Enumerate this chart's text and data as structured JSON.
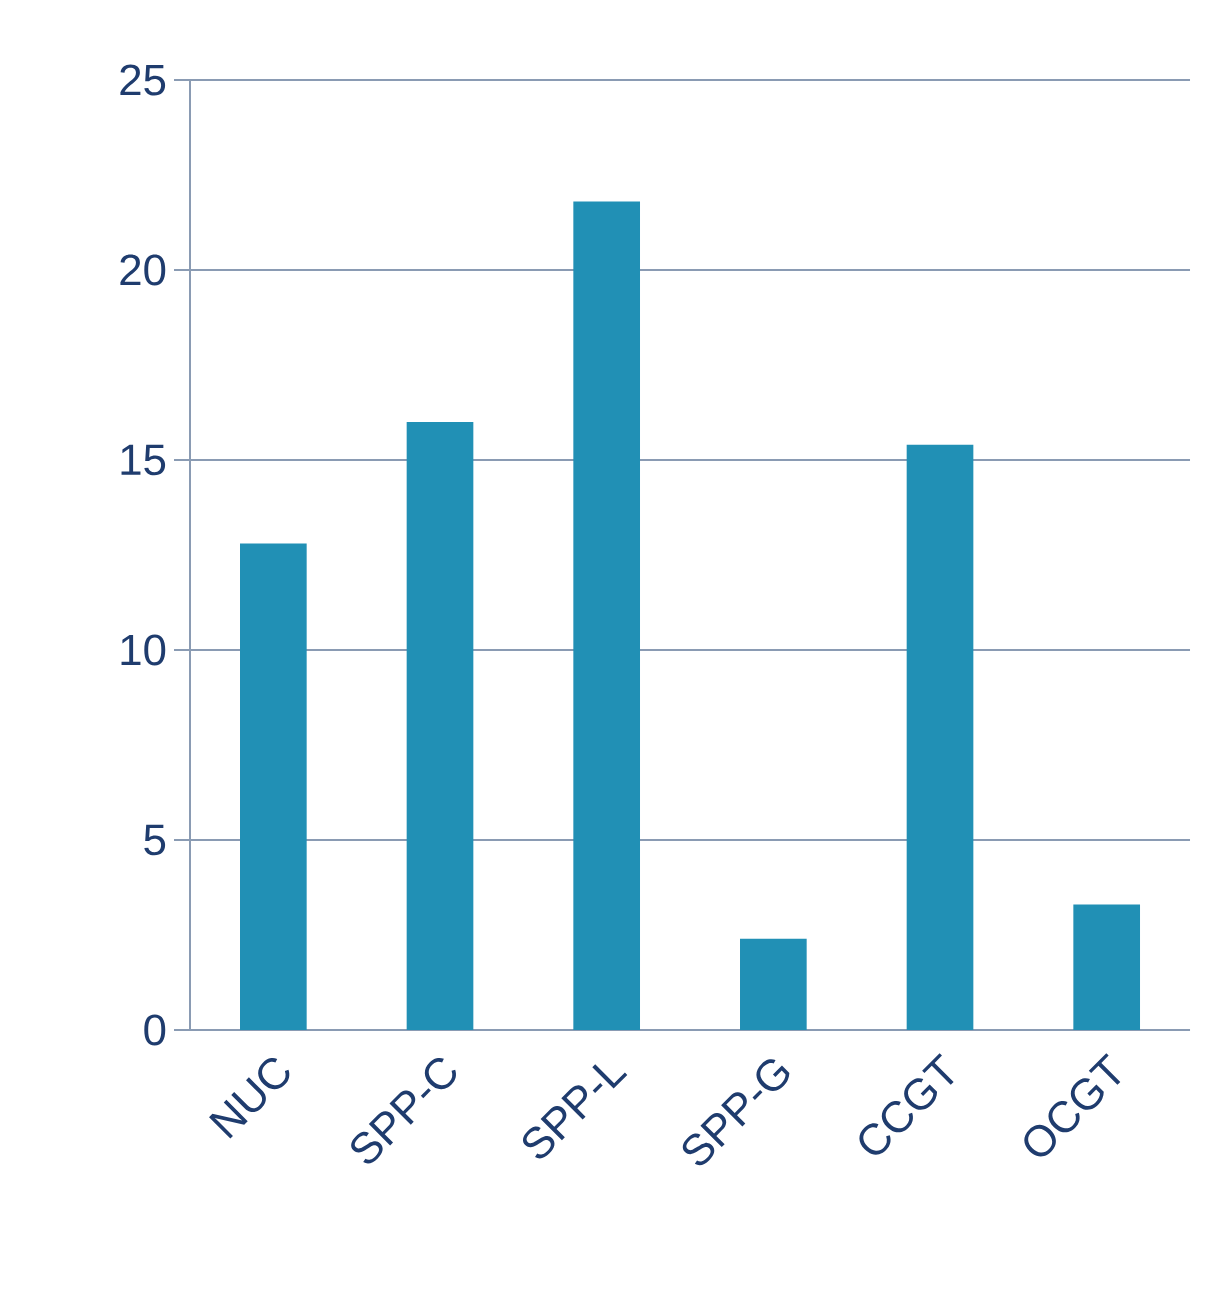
{
  "chart_data": {
    "type": "bar",
    "categories": [
      "NUC",
      "SPP-C",
      "SPP-L",
      "SPP-G",
      "CCGT",
      "OCGT"
    ],
    "values": [
      12.8,
      16.0,
      21.8,
      2.4,
      15.4,
      3.3
    ],
    "color": "#2190b5",
    "ylim": [
      0,
      25
    ],
    "yticks": [
      0,
      5,
      10,
      15,
      20,
      25
    ],
    "grid": "y"
  }
}
